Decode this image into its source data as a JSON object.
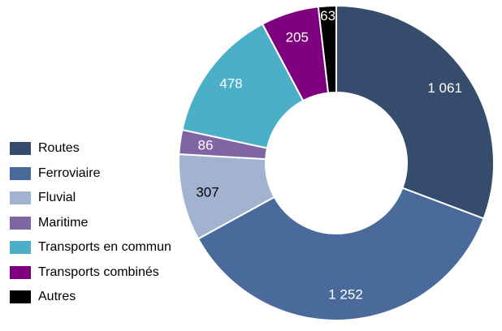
{
  "chart_data": {
    "type": "donut",
    "title": "",
    "categories": [
      "Routes",
      "Ferroviaire",
      "Fluvial",
      "Maritime",
      "Transports en commun",
      "Transports combinés",
      "Autres"
    ],
    "values": [
      1061,
      1252,
      307,
      86,
      478,
      205,
      63
    ],
    "value_labels": [
      "1 061",
      "1 252",
      "307",
      "86",
      "478",
      "205",
      "63"
    ],
    "colors": [
      "#364c6c",
      "#4a6a9b",
      "#a1b3d1",
      "#8065a5",
      "#4bafc8",
      "#7f007f",
      "#000000"
    ],
    "label_colors": [
      "#ffffff",
      "#ffffff",
      "#000000",
      "#ffffff",
      "#ffffff",
      "#ffffff",
      "#ffffff"
    ],
    "start_angle_deg": 0,
    "direction": "clockwise",
    "legend_position": "left"
  }
}
